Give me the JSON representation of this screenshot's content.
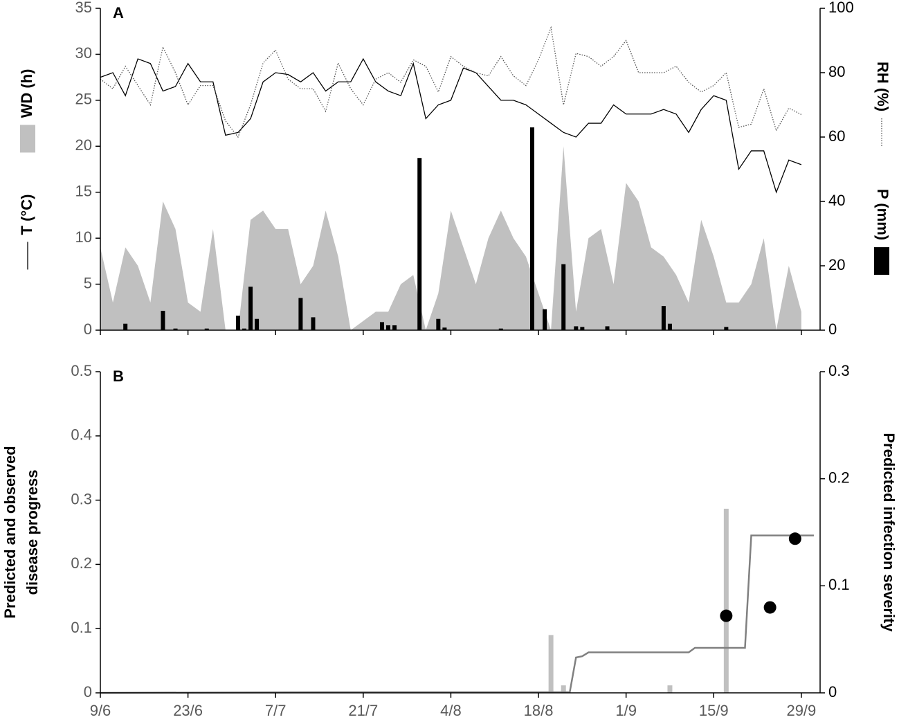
{
  "chart_data": [
    {
      "type": "combo",
      "annotation": "A",
      "x": [
        0,
        2,
        4,
        6,
        8,
        10,
        12,
        14,
        16,
        18,
        20,
        22,
        24,
        26,
        28,
        30,
        32,
        34,
        36,
        38,
        40,
        42,
        44,
        46,
        48,
        50,
        52,
        54,
        56,
        58,
        60,
        62,
        64,
        66,
        68,
        70,
        72,
        74,
        76,
        78,
        80,
        82,
        84,
        86,
        88,
        90,
        92,
        94,
        96,
        98,
        100,
        102,
        104,
        106,
        108,
        110,
        112
      ],
      "xlim": [
        0,
        115
      ],
      "xticks": [
        0,
        14,
        28,
        42,
        56,
        70,
        84,
        98,
        112
      ],
      "ylim": [
        0,
        35
      ],
      "yticks": [
        0,
        5,
        10,
        15,
        20,
        25,
        30,
        35
      ],
      "y2lim": [
        0,
        100
      ],
      "y2ticks": [
        0,
        20,
        40,
        60,
        80,
        100
      ],
      "series": [
        {
          "name": "WD (h)",
          "type": "area",
          "color": "#c0c0c0",
          "values": [
            9,
            3,
            9,
            7,
            3,
            14,
            11,
            3,
            2,
            11,
            0,
            0,
            12,
            13,
            11,
            11,
            5,
            7,
            13,
            8,
            0,
            1,
            2,
            2,
            5,
            6,
            0,
            4,
            13,
            9,
            5,
            10,
            13,
            10,
            8,
            4,
            0,
            20,
            2,
            10,
            11,
            5,
            16,
            14,
            9,
            8,
            6,
            3,
            12,
            8,
            3,
            3,
            5,
            10,
            0,
            7,
            2
          ]
        },
        {
          "name": "T (°C)",
          "type": "line",
          "color": "#000000",
          "values": [
            27.5,
            28,
            25.5,
            29.5,
            29,
            26,
            26.5,
            29,
            27,
            27,
            21.2,
            21.5,
            23,
            27,
            28,
            27.8,
            27,
            28,
            26,
            27,
            27,
            29.5,
            27,
            26,
            25.5,
            29,
            23,
            24.5,
            25,
            28.5,
            28,
            26.5,
            25,
            25,
            24.5,
            23.5,
            22.5,
            21.5,
            21,
            22.5,
            22.5,
            24.5,
            23.5,
            23.5,
            23.5,
            24,
            23.5,
            21.5,
            24,
            25.5,
            25,
            17.5,
            19.5,
            19.5,
            15,
            18.5,
            18
          ]
        },
        {
          "name": "RH (%)",
          "type": "line",
          "dotted": true,
          "axis": "y2",
          "color": "#555555",
          "values": [
            78,
            75,
            82,
            76,
            70,
            88,
            80,
            70,
            76,
            76,
            65,
            60,
            70,
            83,
            87,
            78,
            75,
            75,
            68,
            83,
            75,
            70,
            78,
            80,
            77,
            84,
            82,
            74,
            85,
            82,
            80,
            79,
            85,
            79,
            76,
            84,
            94,
            70,
            86,
            85,
            82,
            85,
            90,
            80,
            80,
            80,
            82,
            77,
            74,
            76,
            80,
            63,
            64,
            75,
            62,
            69,
            67
          ]
        },
        {
          "name": "P (mm)",
          "type": "bar",
          "axis": "y2",
          "color": "#000000",
          "x": [
            4,
            10,
            12,
            17,
            22,
            23,
            24,
            25,
            32,
            34,
            45,
            46,
            47,
            51,
            54,
            55,
            64,
            69,
            71,
            74,
            76,
            77,
            81,
            90,
            91,
            100
          ],
          "values": [
            2,
            6,
            0.5,
            0.5,
            4.5,
            0.5,
            13.5,
            3.5,
            10,
            4,
            2.5,
            1.5,
            1.5,
            53.5,
            3.5,
            0.8,
            0.5,
            63,
            6.5,
            20.5,
            1.2,
            1,
            1.2,
            7.5,
            2,
            1
          ]
        }
      ]
    },
    {
      "type": "combo",
      "annotation": "B",
      "ylabel": [
        "Predicted and observed",
        "disease progress"
      ],
      "y2label": "Predicted infection severity",
      "xlim": [
        0,
        115
      ],
      "xticks": [
        {
          "value": 0,
          "label": "9/6"
        },
        {
          "value": 14,
          "label": "23/6"
        },
        {
          "value": 28,
          "label": "7/7"
        },
        {
          "value": 42,
          "label": "21/7"
        },
        {
          "value": 56,
          "label": "4/8"
        },
        {
          "value": 70,
          "label": "18/8"
        },
        {
          "value": 84,
          "label": "1/9"
        },
        {
          "value": 98,
          "label": "15/9"
        },
        {
          "value": 112,
          "label": "29/9"
        }
      ],
      "ylim": [
        0,
        0.5
      ],
      "yticks": [
        0,
        0.1,
        0.2,
        0.3,
        0.4,
        0.5
      ],
      "y2lim": [
        0,
        0.3
      ],
      "y2ticks": [
        0,
        0.1,
        0.2,
        0.3
      ],
      "series": [
        {
          "type": "bar",
          "axis": "y2",
          "color": "#c0c0c0",
          "x": [
            72,
            74,
            91,
            100
          ],
          "values": [
            0.054,
            0.007,
            0.007,
            0.172
          ]
        },
        {
          "type": "line",
          "color": "#808080",
          "x": [
            0,
            36,
            75,
            76,
            77,
            78,
            94,
            95,
            103,
            104,
            114
          ],
          "values": [
            0,
            0.001,
            0.001,
            0.055,
            0.057,
            0.063,
            0.063,
            0.07,
            0.07,
            0.245,
            0.245
          ]
        },
        {
          "type": "scatter",
          "color": "#000000",
          "x": [
            100,
            107,
            111
          ],
          "values": [
            0.12,
            0.133,
            0.24
          ]
        }
      ]
    }
  ]
}
